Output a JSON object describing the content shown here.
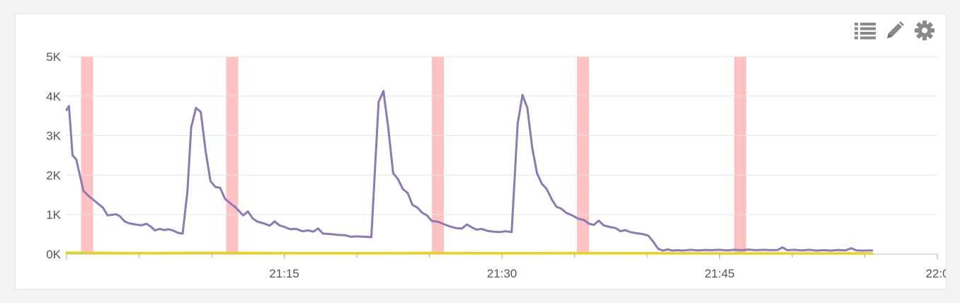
{
  "toolbar": {
    "icons": [
      "list-icon",
      "pencil-icon",
      "gear-icon"
    ],
    "icon_color": "#8a8a8a"
  },
  "chart_data": {
    "type": "line",
    "title": "",
    "xlabel": "",
    "ylabel": "",
    "x_domain": [
      "21:00",
      "22:00"
    ],
    "x_ticks": [
      "21:15",
      "21:30",
      "21:45",
      "22:0"
    ],
    "y_ticks": [
      "0K",
      "1K",
      "2K",
      "3K",
      "4K",
      "5K"
    ],
    "ylim": [
      0,
      5000
    ],
    "grid": true,
    "highlight_color": "#ffc2c2",
    "highlight_bands": [
      [
        "21:01:00",
        "21:01:50"
      ],
      [
        "21:11:00",
        "21:11:50"
      ],
      [
        "21:25:10",
        "21:26:00"
      ],
      [
        "21:35:10",
        "21:36:00"
      ],
      [
        "21:46:00",
        "21:46:50"
      ]
    ],
    "series": [
      {
        "color": "#8c79b6",
        "points": [
          [
            "21:00:00",
            3650
          ],
          [
            "21:00:10",
            3750
          ],
          [
            "21:00:25",
            2500
          ],
          [
            "21:00:40",
            2400
          ],
          [
            "21:00:55",
            2000
          ],
          [
            "21:01:10",
            1600
          ],
          [
            "21:01:30",
            1480
          ],
          [
            "21:01:50",
            1380
          ],
          [
            "21:02:10",
            1280
          ],
          [
            "21:02:30",
            1180
          ],
          [
            "21:02:50",
            980
          ],
          [
            "21:03:10",
            1000
          ],
          [
            "21:03:25",
            1010
          ],
          [
            "21:03:40",
            960
          ],
          [
            "21:04:00",
            830
          ],
          [
            "21:04:20",
            780
          ],
          [
            "21:04:45",
            750
          ],
          [
            "21:05:10",
            730
          ],
          [
            "21:05:30",
            770
          ],
          [
            "21:05:50",
            690
          ],
          [
            "21:06:05",
            600
          ],
          [
            "21:06:25",
            640
          ],
          [
            "21:06:45",
            610
          ],
          [
            "21:07:00",
            630
          ],
          [
            "21:07:20",
            600
          ],
          [
            "21:07:40",
            540
          ],
          [
            "21:08:00",
            520
          ],
          [
            "21:08:20",
            1600
          ],
          [
            "21:08:35",
            3200
          ],
          [
            "21:08:55",
            3700
          ],
          [
            "21:09:15",
            3600
          ],
          [
            "21:09:35",
            2600
          ],
          [
            "21:09:55",
            1850
          ],
          [
            "21:10:15",
            1700
          ],
          [
            "21:10:35",
            1680
          ],
          [
            "21:10:55",
            1400
          ],
          [
            "21:11:15",
            1300
          ],
          [
            "21:11:35",
            1200
          ],
          [
            "21:11:55",
            1080
          ],
          [
            "21:12:10",
            980
          ],
          [
            "21:12:30",
            1080
          ],
          [
            "21:12:50",
            900
          ],
          [
            "21:13:10",
            820
          ],
          [
            "21:13:35",
            780
          ],
          [
            "21:14:00",
            720
          ],
          [
            "21:14:20",
            830
          ],
          [
            "21:14:40",
            730
          ],
          [
            "21:15:00",
            690
          ],
          [
            "21:15:25",
            630
          ],
          [
            "21:15:50",
            640
          ],
          [
            "21:16:15",
            580
          ],
          [
            "21:16:40",
            600
          ],
          [
            "21:17:00",
            570
          ],
          [
            "21:17:20",
            650
          ],
          [
            "21:17:40",
            520
          ],
          [
            "21:18:10",
            510
          ],
          [
            "21:18:40",
            490
          ],
          [
            "21:19:10",
            480
          ],
          [
            "21:19:35",
            440
          ],
          [
            "21:20:00",
            450
          ],
          [
            "21:20:30",
            440
          ],
          [
            "21:21:00",
            430
          ],
          [
            "21:21:30",
            3850
          ],
          [
            "21:21:50",
            4130
          ],
          [
            "21:22:10",
            3200
          ],
          [
            "21:22:30",
            2050
          ],
          [
            "21:22:50",
            1900
          ],
          [
            "21:23:10",
            1650
          ],
          [
            "21:23:30",
            1550
          ],
          [
            "21:23:50",
            1250
          ],
          [
            "21:24:10",
            1180
          ],
          [
            "21:24:30",
            1050
          ],
          [
            "21:24:50",
            980
          ],
          [
            "21:25:10",
            840
          ],
          [
            "21:25:35",
            820
          ],
          [
            "21:26:00",
            760
          ],
          [
            "21:26:25",
            700
          ],
          [
            "21:26:50",
            660
          ],
          [
            "21:27:15",
            650
          ],
          [
            "21:27:35",
            750
          ],
          [
            "21:27:55",
            680
          ],
          [
            "21:28:15",
            620
          ],
          [
            "21:28:35",
            640
          ],
          [
            "21:29:00",
            590
          ],
          [
            "21:29:25",
            570
          ],
          [
            "21:29:50",
            560
          ],
          [
            "21:30:15",
            580
          ],
          [
            "21:30:40",
            560
          ],
          [
            "21:31:05",
            3300
          ],
          [
            "21:31:25",
            4030
          ],
          [
            "21:31:45",
            3700
          ],
          [
            "21:32:05",
            2700
          ],
          [
            "21:32:25",
            2050
          ],
          [
            "21:32:45",
            1780
          ],
          [
            "21:33:05",
            1650
          ],
          [
            "21:33:25",
            1400
          ],
          [
            "21:33:45",
            1200
          ],
          [
            "21:34:05",
            1150
          ],
          [
            "21:34:25",
            1050
          ],
          [
            "21:34:50",
            980
          ],
          [
            "21:35:15",
            900
          ],
          [
            "21:35:40",
            860
          ],
          [
            "21:36:00",
            770
          ],
          [
            "21:36:20",
            740
          ],
          [
            "21:36:40",
            850
          ],
          [
            "21:37:00",
            730
          ],
          [
            "21:37:25",
            690
          ],
          [
            "21:37:50",
            660
          ],
          [
            "21:38:10",
            580
          ],
          [
            "21:38:30",
            610
          ],
          [
            "21:38:50",
            560
          ],
          [
            "21:39:15",
            530
          ],
          [
            "21:39:40",
            510
          ],
          [
            "21:40:05",
            470
          ],
          [
            "21:40:25",
            320
          ],
          [
            "21:40:45",
            140
          ],
          [
            "21:41:05",
            90
          ],
          [
            "21:41:25",
            120
          ],
          [
            "21:41:45",
            90
          ],
          [
            "21:42:05",
            100
          ],
          [
            "21:42:25",
            90
          ],
          [
            "21:43:00",
            110
          ],
          [
            "21:43:30",
            95
          ],
          [
            "21:44:00",
            105
          ],
          [
            "21:44:30",
            100
          ],
          [
            "21:45:00",
            110
          ],
          [
            "21:45:30",
            95
          ],
          [
            "21:46:00",
            110
          ],
          [
            "21:46:30",
            100
          ],
          [
            "21:47:00",
            115
          ],
          [
            "21:47:30",
            100
          ],
          [
            "21:48:00",
            110
          ],
          [
            "21:48:30",
            100
          ],
          [
            "21:49:00",
            105
          ],
          [
            "21:49:20",
            170
          ],
          [
            "21:49:40",
            100
          ],
          [
            "21:50:10",
            110
          ],
          [
            "21:50:40",
            95
          ],
          [
            "21:51:10",
            110
          ],
          [
            "21:51:40",
            90
          ],
          [
            "21:52:10",
            100
          ],
          [
            "21:52:40",
            90
          ],
          [
            "21:53:10",
            105
          ],
          [
            "21:53:40",
            95
          ],
          [
            "21:54:05",
            150
          ],
          [
            "21:54:25",
            95
          ],
          [
            "21:54:50",
            90
          ],
          [
            "21:55:30",
            95
          ]
        ]
      },
      {
        "color": "#e8d21f",
        "points": [
          [
            "21:00:00",
            35
          ],
          [
            "21:05:00",
            25
          ],
          [
            "21:10:00",
            30
          ],
          [
            "21:15:00",
            25
          ],
          [
            "21:20:00",
            22
          ],
          [
            "21:25:00",
            28
          ],
          [
            "21:30:00",
            24
          ],
          [
            "21:35:00",
            26
          ],
          [
            "21:40:00",
            22
          ],
          [
            "21:45:00",
            18
          ],
          [
            "21:50:00",
            18
          ],
          [
            "21:55:30",
            18
          ]
        ]
      }
    ]
  }
}
